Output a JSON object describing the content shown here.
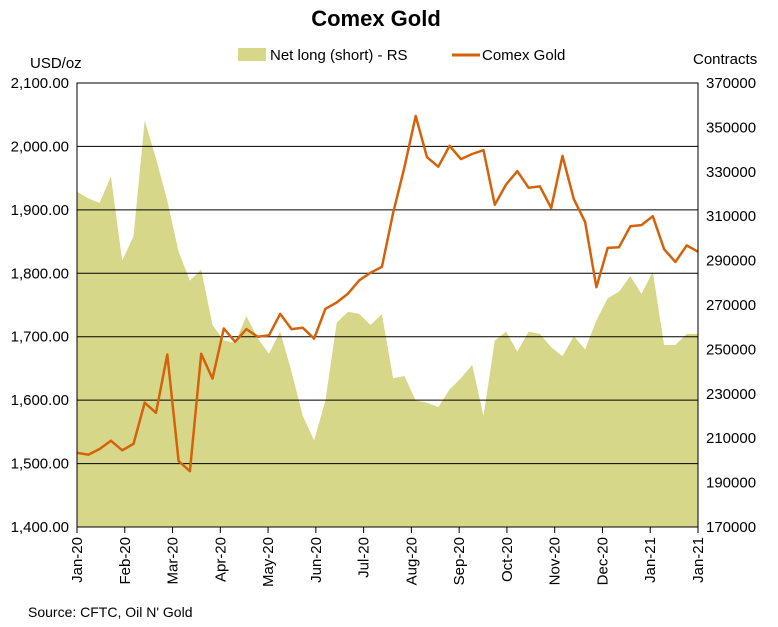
{
  "chart_data": {
    "type": "line",
    "title": "Comex Gold",
    "ylabel_left": "USD/oz",
    "ylabel_right": "Contracts",
    "source": "Source: CFTC, Oil N' Gold",
    "ylim_left": [
      1400,
      2100
    ],
    "ylim_right": [
      170000,
      370000
    ],
    "left_ticks": [
      "1,400.00",
      "1,500.00",
      "1,600.00",
      "1,700.00",
      "1,800.00",
      "1,900.00",
      "2,000.00",
      "2,100.00"
    ],
    "right_ticks": [
      "170000",
      "190000",
      "210000",
      "230000",
      "250000",
      "270000",
      "290000",
      "310000",
      "330000",
      "350000",
      "370000"
    ],
    "x_ticks": [
      "Jan-20",
      "Feb-20",
      "Mar-20",
      "Apr-20",
      "May-20",
      "Jun-20",
      "Jul-20",
      "Aug-20",
      "Sep-20",
      "Oct-20",
      "Nov-20",
      "Dec-20",
      "Jan-21",
      "Jan-21"
    ],
    "grid": true,
    "legend_position": "top",
    "series": [
      {
        "name": "Net long (short) - RS",
        "kind": "area",
        "axis": "right",
        "color": "#D7D78A",
        "values": [
          321000,
          318000,
          316000,
          328000,
          290000,
          301000,
          353000,
          336000,
          317000,
          294000,
          281000,
          286000,
          261000,
          254000,
          253000,
          265000,
          255000,
          248000,
          258000,
          240000,
          220000,
          209000,
          227000,
          262000,
          267000,
          266000,
          261000,
          266000,
          237000,
          238000,
          227000,
          226000,
          224000,
          232000,
          237000,
          243000,
          220000,
          254000,
          258000,
          249000,
          258000,
          257000,
          251000,
          247000,
          256000,
          250000,
          263000,
          273000,
          276000,
          283000,
          275000,
          285000,
          252000,
          252000,
          257000,
          257000
        ]
      },
      {
        "name": "Comex Gold",
        "kind": "line",
        "axis": "left",
        "color": "#D4620A",
        "values": [
          1517,
          1514,
          1523,
          1536,
          1521,
          1531,
          1596,
          1580,
          1672,
          1504,
          1488,
          1673,
          1634,
          1713,
          1692,
          1712,
          1700,
          1702,
          1736,
          1712,
          1714,
          1697,
          1744,
          1754,
          1768,
          1789,
          1801,
          1810,
          1895,
          1967,
          2048,
          1983,
          1968,
          2001,
          1980,
          1988,
          1994,
          1908,
          1940,
          1961,
          1935,
          1937,
          1903,
          1985,
          1917,
          1881,
          1778,
          1840,
          1841,
          1874,
          1876,
          1890,
          1838,
          1818,
          1844,
          1834
        ]
      }
    ]
  }
}
